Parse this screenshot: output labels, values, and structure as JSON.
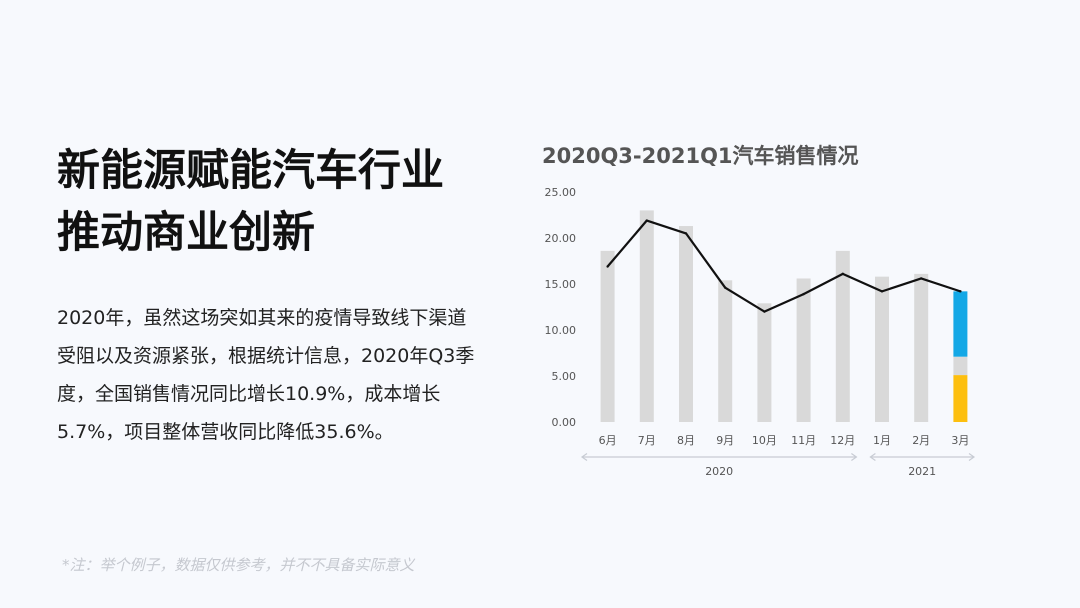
{
  "headline": [
    "新能源赋能汽车行业",
    "推动商业创新"
  ],
  "body_text": "2020年，虽然这场突如其来的疫情导致线下渠道受阻以及资源紧张，根据统计信息，2020年Q3季度，全国销售情况同比增长10.9%，成本增长5.7%，项目整体营收同比降低35.6%。",
  "footnote": "*注：举个例子，数据仅供参考，并不不具备实际意义",
  "colors": {
    "bar": "#d9d9d9",
    "line": "#111111",
    "blue": "#14a8e6",
    "yellow": "#fdbf0f",
    "axis_arrow": "#c8ccd4"
  },
  "chart_data": {
    "type": "bar",
    "title": "2020Q3-2021Q1汽车销售情况",
    "categories": [
      "6月",
      "7月",
      "8月",
      "9月",
      "10月",
      "11月",
      "12月",
      "1月",
      "2月",
      "3月"
    ],
    "ylim": [
      0,
      25
    ],
    "yticks": [
      "0.00",
      "5.00",
      "10.00",
      "15.00",
      "20.00",
      "25.00"
    ],
    "series": [
      {
        "type": "bar",
        "values": [
          18.6,
          23.0,
          21.3,
          15.4,
          12.9,
          15.6,
          18.6,
          15.8,
          16.1,
          14.2
        ]
      },
      {
        "type": "line",
        "values": [
          16.9,
          21.9,
          20.5,
          14.6,
          12.0,
          13.9,
          16.1,
          14.2,
          15.6,
          14.2
        ]
      }
    ],
    "highlight": {
      "category": "3月",
      "yellow": 5.1,
      "grey": 2.0,
      "blue": 7.1
    },
    "year_groups": [
      {
        "label": "2020",
        "from": "6月",
        "to": "12月"
      },
      {
        "label": "2021",
        "from": "1月",
        "to": "3月"
      }
    ],
    "grid": false,
    "legend": "none"
  }
}
